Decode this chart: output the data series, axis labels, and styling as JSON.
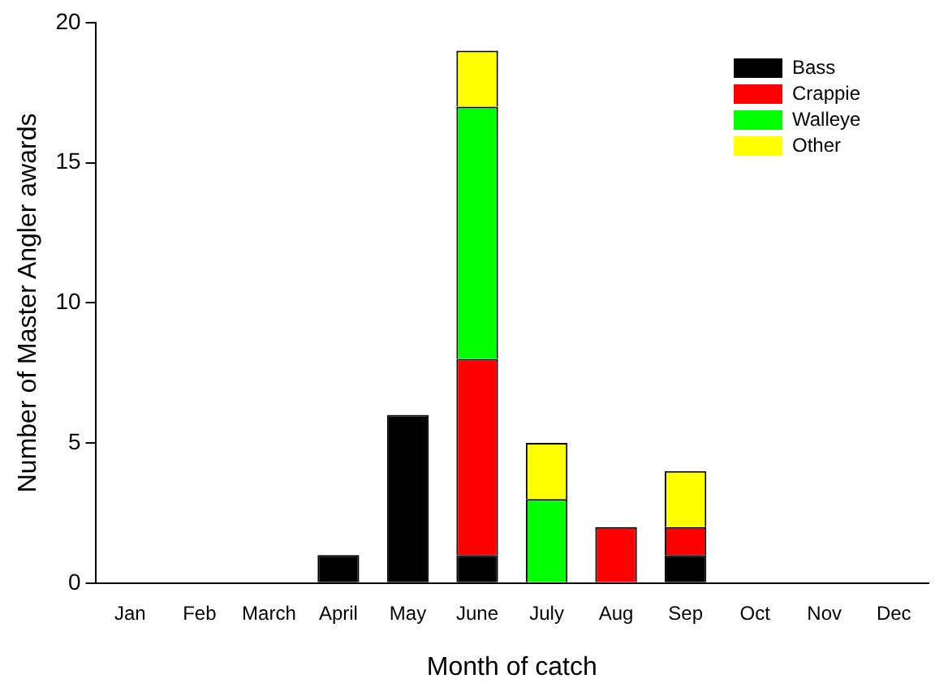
{
  "chart_data": {
    "type": "bar",
    "stacked": true,
    "xlabel": "Month of catch",
    "ylabel": "Number of Master Angler awards",
    "categories": [
      "Jan",
      "Feb",
      "March",
      "April",
      "May",
      "June",
      "July",
      "Aug",
      "Sep",
      "Oct",
      "Nov",
      "Dec"
    ],
    "series": [
      {
        "name": "Bass",
        "color": "#000000",
        "values": [
          0,
          0,
          0,
          1,
          6,
          1,
          0,
          0,
          1,
          0,
          0,
          0
        ]
      },
      {
        "name": "Crappie",
        "color": "#ff0000",
        "values": [
          0,
          0,
          0,
          0,
          0,
          7,
          0,
          2,
          1,
          0,
          0,
          0
        ]
      },
      {
        "name": "Walleye",
        "color": "#00ff00",
        "values": [
          0,
          0,
          0,
          0,
          0,
          9,
          3,
          0,
          0,
          0,
          0,
          0
        ]
      },
      {
        "name": "Other",
        "color": "#ffff00",
        "values": [
          0,
          0,
          0,
          0,
          0,
          2,
          2,
          0,
          2,
          0,
          0,
          0
        ]
      }
    ],
    "ylim": [
      0,
      20
    ],
    "yticks": [
      0,
      5,
      10,
      15,
      20
    ],
    "grid": false,
    "legend": "top right"
  }
}
